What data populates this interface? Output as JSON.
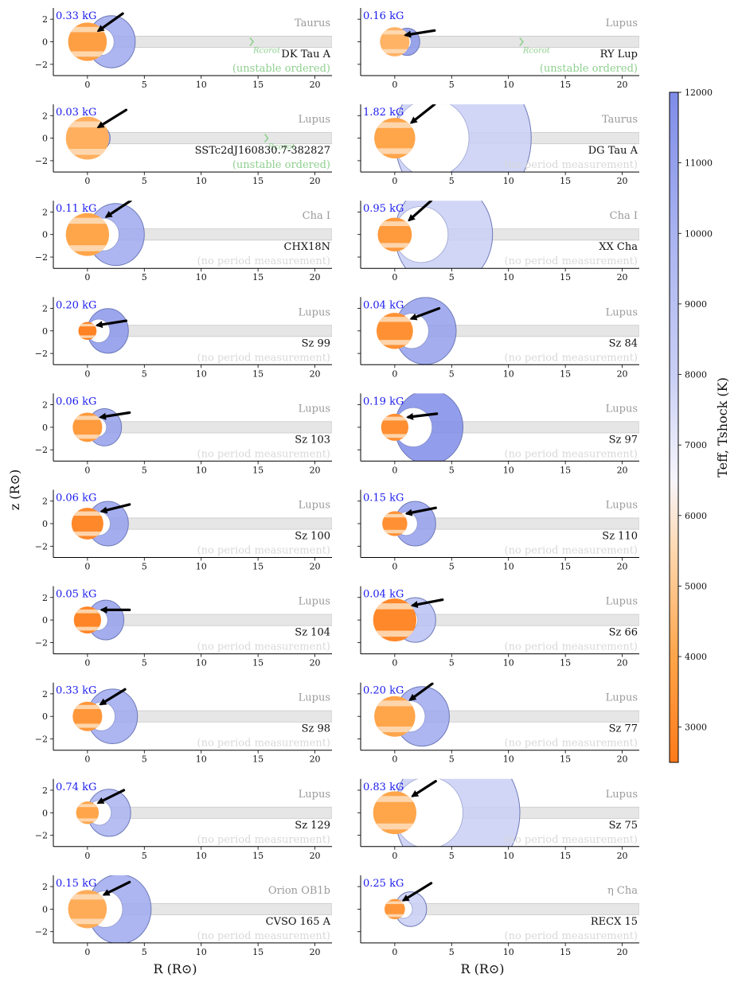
{
  "figure": {
    "axis_labels": {
      "x": "R (R⊙)",
      "y": "z (R⊙)"
    },
    "colorbar": {
      "label": "Teff, Tshock (K)",
      "ticks": [
        3000,
        4000,
        5000,
        6000,
        7000,
        8000,
        9000,
        10000,
        11000,
        12000
      ],
      "range": [
        2500,
        12000
      ],
      "colormap_stops": [
        {
          "t": 2500,
          "color": "#ff7a1a"
        },
        {
          "t": 4000,
          "color": "#ffa54a"
        },
        {
          "t": 5500,
          "color": "#ffd8b0"
        },
        {
          "t": 6500,
          "color": "#f7f5fb"
        },
        {
          "t": 8000,
          "color": "#c9cff5"
        },
        {
          "t": 10000,
          "color": "#a9b3f0"
        },
        {
          "t": 12000,
          "color": "#7f8ce8"
        }
      ]
    },
    "colors": {
      "field_label": "#1a1aee",
      "region_label": "#9a9a9a",
      "name_label": "#111111",
      "status_green": "#8fd08f",
      "status_gray": "#d8d8d8",
      "disk_fill": "#e6e6e6",
      "disk_stroke": "#c8c8c8",
      "shock_stroke": "#6d79b8"
    }
  },
  "chart_data": {
    "type": "scatter",
    "title": "",
    "xlabel": "R (R⊙)",
    "ylabel": "z (R⊙)",
    "xlim": [
      -3,
      21.5
    ],
    "ylim": [
      -3,
      3
    ],
    "xticks": [
      0,
      5,
      10,
      15,
      20
    ],
    "yticks": [
      -2,
      0,
      2
    ],
    "star_temperatures_K": [
      3800,
      4400,
      4300,
      4000,
      4000,
      3600,
      2800,
      3300,
      3600,
      3200,
      3000,
      3300,
      2900,
      3000,
      3500,
      4000,
      4000,
      4000,
      4200,
      3500
    ],
    "panels": [
      {
        "field": "0.33 kG",
        "region": "Taurus",
        "name": "DK Tau A",
        "status": "(unstable ordered)",
        "status_color": "green",
        "rcorot": "Rcorot",
        "rcorot_x": 14.5,
        "star_r": 1.7,
        "star_t": 3800,
        "shock_t": 10500,
        "mag_r": 2.1,
        "arrow": [
          1.0,
          1.0,
          3.1,
          2.5
        ]
      },
      {
        "field": "0.16 kG",
        "region": "Lupus",
        "name": "RY Lup",
        "status": "(unstable ordered)",
        "status_color": "green",
        "rcorot": "Rcorot",
        "rcorot_x": 11.2,
        "star_r": 1.3,
        "star_t": 4400,
        "shock_t": 11500,
        "mag_r": 1.1,
        "arrow": [
          1.0,
          0.6,
          3.5,
          1.0
        ]
      },
      {
        "field": "0.03 kG",
        "region": "Lupus",
        "name": "SSTc2dJ160830.7-382827",
        "status": "(unstable ordered)",
        "status_color": "green",
        "rcorot": "Rcorot",
        "rcorot_x": 15.8,
        "star_r": 1.9,
        "star_t": 4300,
        "shock_t": 11200,
        "mag_r": 1.0,
        "arrow": [
          1.0,
          1.0,
          3.4,
          2.5
        ]
      },
      {
        "field": "1.82 kG",
        "region": "Taurus",
        "name": "DG Tau A",
        "status": "(no period measurement)",
        "status_color": "gray",
        "rcorot": "",
        "rcorot_x": 0,
        "star_r": 1.8,
        "star_t": 4000,
        "shock_t": 8000,
        "mag_r": 6.0,
        "arrow": [
          1.5,
          1.4,
          3.5,
          3.0
        ]
      },
      {
        "field": "0.11 kG",
        "region": "Cha I",
        "name": "CHX18N",
        "status": "(no period measurement)",
        "status_color": "gray",
        "rcorot": "",
        "rcorot_x": 0,
        "star_r": 1.9,
        "star_t": 4000,
        "shock_t": 10500,
        "mag_r": 2.5,
        "arrow": [
          1.7,
          1.6,
          3.8,
          3.0
        ]
      },
      {
        "field": "0.95 kG",
        "region": "Cha I",
        "name": "XX Cha",
        "status": "(no period measurement)",
        "status_color": "gray",
        "rcorot": "",
        "rcorot_x": 0,
        "star_r": 1.5,
        "star_t": 3600,
        "shock_t": 8000,
        "mag_r": 4.3,
        "arrow": [
          1.3,
          1.3,
          3.2,
          3.0
        ]
      },
      {
        "field": "0.20 kG",
        "region": "Lupus",
        "name": "Sz 99",
        "status": "(no period measurement)",
        "status_color": "gray",
        "rcorot": "",
        "rcorot_x": 0,
        "star_r": 0.8,
        "star_t": 2800,
        "shock_t": 11500,
        "mag_r": 1.8,
        "arrow": [
          0.9,
          0.5,
          3.4,
          0.9
        ]
      },
      {
        "field": "0.04 kG",
        "region": "Lupus",
        "name": "Sz 84",
        "status": "(no period measurement)",
        "status_color": "gray",
        "rcorot": "",
        "rcorot_x": 0,
        "star_r": 1.6,
        "star_t": 3300,
        "shock_t": 11000,
        "mag_r": 2.7,
        "arrow": [
          1.5,
          1.1,
          3.9,
          2.0
        ]
      },
      {
        "field": "0.06 kG",
        "region": "Lupus",
        "name": "Sz 103",
        "status": "(no period measurement)",
        "status_color": "gray",
        "rcorot": "",
        "rcorot_x": 0,
        "star_r": 1.3,
        "star_t": 3600,
        "shock_t": 11000,
        "mag_r": 1.5,
        "arrow": [
          1.2,
          0.9,
          3.7,
          1.3
        ]
      },
      {
        "field": "0.19 kG",
        "region": "Lupus",
        "name": "Sz 97",
        "status": "(no period measurement)",
        "status_color": "gray",
        "rcorot": "",
        "rcorot_x": 0,
        "star_r": 1.2,
        "star_t": 3200,
        "shock_t": 12000,
        "mag_r": 3.0,
        "arrow": [
          1.2,
          0.9,
          3.7,
          1.2
        ]
      },
      {
        "field": "0.06 kG",
        "region": "Lupus",
        "name": "Sz 100",
        "status": "(no period measurement)",
        "status_color": "gray",
        "rcorot": "",
        "rcorot_x": 0,
        "star_r": 1.4,
        "star_t": 3000,
        "shock_t": 11000,
        "mag_r": 1.8,
        "arrow": [
          1.3,
          1.1,
          3.7,
          1.7
        ]
      },
      {
        "field": "0.15 kG",
        "region": "Lupus",
        "name": "Sz 110",
        "status": "(no period measurement)",
        "status_color": "gray",
        "rcorot": "",
        "rcorot_x": 0,
        "star_r": 1.1,
        "star_t": 3300,
        "shock_t": 11000,
        "mag_r": 1.8,
        "arrow": [
          1.1,
          0.9,
          3.6,
          1.4
        ]
      },
      {
        "field": "0.05 kG",
        "region": "Lupus",
        "name": "Sz 104",
        "status": "(no period measurement)",
        "status_color": "gray",
        "rcorot": "",
        "rcorot_x": 0,
        "star_r": 1.2,
        "star_t": 2900,
        "shock_t": 11000,
        "mag_r": 1.6,
        "arrow": [
          1.3,
          0.9,
          3.7,
          0.9
        ]
      },
      {
        "field": "0.04 kG",
        "region": "Lupus",
        "name": "Sz 66",
        "status": "(no period measurement)",
        "status_color": "gray",
        "rcorot": "",
        "rcorot_x": 0,
        "star_r": 1.9,
        "star_t": 3000,
        "shock_t": 9000,
        "mag_r": 1.8,
        "arrow": [
          1.6,
          1.3,
          4.2,
          1.8
        ]
      },
      {
        "field": "0.33 kG",
        "region": "Lupus",
        "name": "Sz 98",
        "status": "(no period measurement)",
        "status_color": "gray",
        "rcorot": "",
        "rcorot_x": 0,
        "star_r": 1.3,
        "star_t": 3500,
        "shock_t": 10500,
        "mag_r": 2.2,
        "arrow": [
          1.2,
          1.1,
          3.3,
          2.4
        ]
      },
      {
        "field": "0.20 kG",
        "region": "Lupus",
        "name": "Sz 77",
        "status": "(no period measurement)",
        "status_color": "gray",
        "rcorot": "",
        "rcorot_x": 0,
        "star_r": 1.8,
        "star_t": 4000,
        "shock_t": 10500,
        "mag_r": 2.4,
        "arrow": [
          1.4,
          1.5,
          3.3,
          2.9
        ]
      },
      {
        "field": "0.74 kG",
        "region": "Lupus",
        "name": "Sz 129",
        "status": "(no period measurement)",
        "status_color": "gray",
        "rcorot": "",
        "rcorot_x": 0,
        "star_r": 1.0,
        "star_t": 4000,
        "shock_t": 10000,
        "mag_r": 1.9,
        "arrow": [
          1.0,
          0.9,
          3.2,
          2.0
        ]
      },
      {
        "field": "0.83 kG",
        "region": "Lupus",
        "name": "Sz 75",
        "status": "(no period measurement)",
        "status_color": "gray",
        "rcorot": "",
        "rcorot_x": 0,
        "star_r": 1.9,
        "star_t": 4000,
        "shock_t": 8000,
        "mag_r": 5.5,
        "arrow": [
          1.6,
          1.5,
          3.6,
          2.8
        ]
      },
      {
        "field": "0.15 kG",
        "region": "Orion OB1b",
        "name": "CVSO 165 A",
        "status": "(no period measurement)",
        "status_color": "gray",
        "rcorot": "",
        "rcorot_x": 0,
        "star_r": 1.7,
        "star_t": 4200,
        "shock_t": 10500,
        "mag_r": 2.8,
        "arrow": [
          1.5,
          1.3,
          3.7,
          2.4
        ]
      },
      {
        "field": "0.25 kG",
        "region": "η Cha",
        "name": "RECX 15",
        "status": "(no period measurement)",
        "status_color": "gray",
        "rcorot": "",
        "rcorot_x": 0,
        "star_r": 0.9,
        "star_t": 3500,
        "shock_t": 8000,
        "mag_r": 1.4,
        "arrow": [
          0.8,
          0.8,
          3.2,
          2.3
        ]
      }
    ]
  }
}
